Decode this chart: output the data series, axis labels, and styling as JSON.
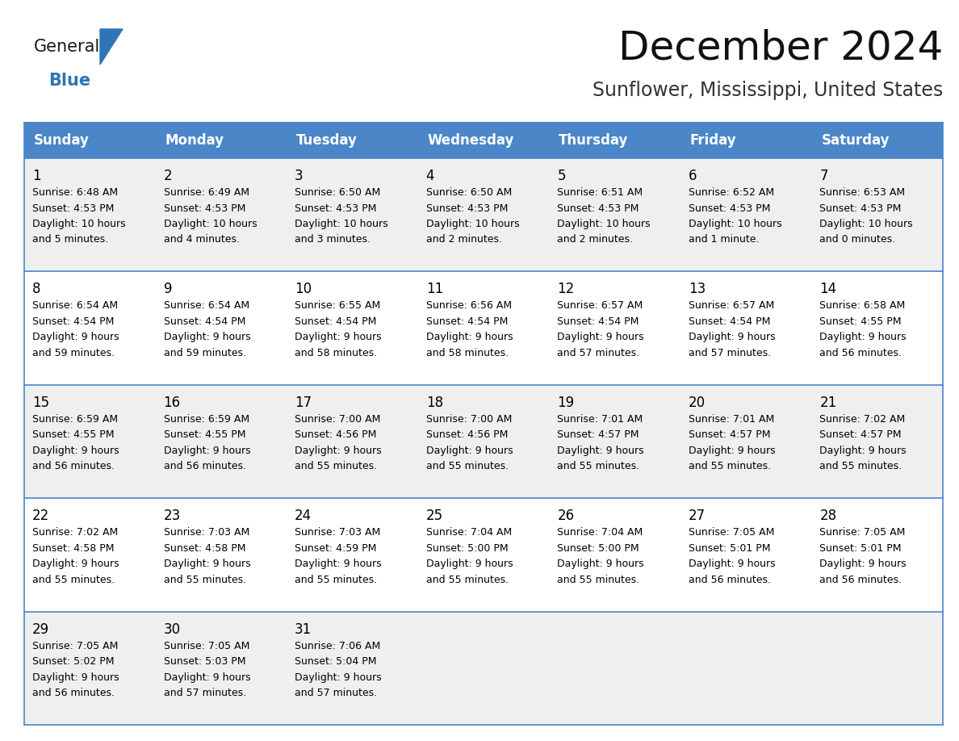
{
  "title": "December 2024",
  "subtitle": "Sunflower, Mississippi, United States",
  "header_color": "#4A86C8",
  "header_text_color": "#FFFFFF",
  "day_names": [
    "Sunday",
    "Monday",
    "Tuesday",
    "Wednesday",
    "Thursday",
    "Friday",
    "Saturday"
  ],
  "bg_color": "#FFFFFF",
  "cell_bg_row0": "#EFEFEF",
  "cell_bg_row1": "#FFFFFF",
  "cell_bg_row2": "#EFEFEF",
  "cell_bg_row3": "#FFFFFF",
  "cell_bg_row4": "#EFEFEF",
  "grid_color": "#4A86C8",
  "text_color": "#000000",
  "days": [
    {
      "date": 1,
      "row": 0,
      "col": 0,
      "sunrise": "6:48 AM",
      "sunset": "4:53 PM",
      "daylight": "10 hours and 5 minutes."
    },
    {
      "date": 2,
      "row": 0,
      "col": 1,
      "sunrise": "6:49 AM",
      "sunset": "4:53 PM",
      "daylight": "10 hours and 4 minutes."
    },
    {
      "date": 3,
      "row": 0,
      "col": 2,
      "sunrise": "6:50 AM",
      "sunset": "4:53 PM",
      "daylight": "10 hours and 3 minutes."
    },
    {
      "date": 4,
      "row": 0,
      "col": 3,
      "sunrise": "6:50 AM",
      "sunset": "4:53 PM",
      "daylight": "10 hours and 2 minutes."
    },
    {
      "date": 5,
      "row": 0,
      "col": 4,
      "sunrise": "6:51 AM",
      "sunset": "4:53 PM",
      "daylight": "10 hours and 2 minutes."
    },
    {
      "date": 6,
      "row": 0,
      "col": 5,
      "sunrise": "6:52 AM",
      "sunset": "4:53 PM",
      "daylight": "10 hours and 1 minute."
    },
    {
      "date": 7,
      "row": 0,
      "col": 6,
      "sunrise": "6:53 AM",
      "sunset": "4:53 PM",
      "daylight": "10 hours and 0 minutes."
    },
    {
      "date": 8,
      "row": 1,
      "col": 0,
      "sunrise": "6:54 AM",
      "sunset": "4:54 PM",
      "daylight": "9 hours and 59 minutes."
    },
    {
      "date": 9,
      "row": 1,
      "col": 1,
      "sunrise": "6:54 AM",
      "sunset": "4:54 PM",
      "daylight": "9 hours and 59 minutes."
    },
    {
      "date": 10,
      "row": 1,
      "col": 2,
      "sunrise": "6:55 AM",
      "sunset": "4:54 PM",
      "daylight": "9 hours and 58 minutes."
    },
    {
      "date": 11,
      "row": 1,
      "col": 3,
      "sunrise": "6:56 AM",
      "sunset": "4:54 PM",
      "daylight": "9 hours and 58 minutes."
    },
    {
      "date": 12,
      "row": 1,
      "col": 4,
      "sunrise": "6:57 AM",
      "sunset": "4:54 PM",
      "daylight": "9 hours and 57 minutes."
    },
    {
      "date": 13,
      "row": 1,
      "col": 5,
      "sunrise": "6:57 AM",
      "sunset": "4:54 PM",
      "daylight": "9 hours and 57 minutes."
    },
    {
      "date": 14,
      "row": 1,
      "col": 6,
      "sunrise": "6:58 AM",
      "sunset": "4:55 PM",
      "daylight": "9 hours and 56 minutes."
    },
    {
      "date": 15,
      "row": 2,
      "col": 0,
      "sunrise": "6:59 AM",
      "sunset": "4:55 PM",
      "daylight": "9 hours and 56 minutes."
    },
    {
      "date": 16,
      "row": 2,
      "col": 1,
      "sunrise": "6:59 AM",
      "sunset": "4:55 PM",
      "daylight": "9 hours and 56 minutes."
    },
    {
      "date": 17,
      "row": 2,
      "col": 2,
      "sunrise": "7:00 AM",
      "sunset": "4:56 PM",
      "daylight": "9 hours and 55 minutes."
    },
    {
      "date": 18,
      "row": 2,
      "col": 3,
      "sunrise": "7:00 AM",
      "sunset": "4:56 PM",
      "daylight": "9 hours and 55 minutes."
    },
    {
      "date": 19,
      "row": 2,
      "col": 4,
      "sunrise": "7:01 AM",
      "sunset": "4:57 PM",
      "daylight": "9 hours and 55 minutes."
    },
    {
      "date": 20,
      "row": 2,
      "col": 5,
      "sunrise": "7:01 AM",
      "sunset": "4:57 PM",
      "daylight": "9 hours and 55 minutes."
    },
    {
      "date": 21,
      "row": 2,
      "col": 6,
      "sunrise": "7:02 AM",
      "sunset": "4:57 PM",
      "daylight": "9 hours and 55 minutes."
    },
    {
      "date": 22,
      "row": 3,
      "col": 0,
      "sunrise": "7:02 AM",
      "sunset": "4:58 PM",
      "daylight": "9 hours and 55 minutes."
    },
    {
      "date": 23,
      "row": 3,
      "col": 1,
      "sunrise": "7:03 AM",
      "sunset": "4:58 PM",
      "daylight": "9 hours and 55 minutes."
    },
    {
      "date": 24,
      "row": 3,
      "col": 2,
      "sunrise": "7:03 AM",
      "sunset": "4:59 PM",
      "daylight": "9 hours and 55 minutes."
    },
    {
      "date": 25,
      "row": 3,
      "col": 3,
      "sunrise": "7:04 AM",
      "sunset": "5:00 PM",
      "daylight": "9 hours and 55 minutes."
    },
    {
      "date": 26,
      "row": 3,
      "col": 4,
      "sunrise": "7:04 AM",
      "sunset": "5:00 PM",
      "daylight": "9 hours and 55 minutes."
    },
    {
      "date": 27,
      "row": 3,
      "col": 5,
      "sunrise": "7:05 AM",
      "sunset": "5:01 PM",
      "daylight": "9 hours and 56 minutes."
    },
    {
      "date": 28,
      "row": 3,
      "col": 6,
      "sunrise": "7:05 AM",
      "sunset": "5:01 PM",
      "daylight": "9 hours and 56 minutes."
    },
    {
      "date": 29,
      "row": 4,
      "col": 0,
      "sunrise": "7:05 AM",
      "sunset": "5:02 PM",
      "daylight": "9 hours and 56 minutes."
    },
    {
      "date": 30,
      "row": 4,
      "col": 1,
      "sunrise": "7:05 AM",
      "sunset": "5:03 PM",
      "daylight": "9 hours and 57 minutes."
    },
    {
      "date": 31,
      "row": 4,
      "col": 2,
      "sunrise": "7:06 AM",
      "sunset": "5:04 PM",
      "daylight": "9 hours and 57 minutes."
    }
  ],
  "logo_text_general": "General",
  "logo_text_blue": "Blue",
  "logo_color_general": "#1a1a1a",
  "logo_color_blue": "#2E75B6",
  "logo_triangle_color": "#2E75B6",
  "title_fontsize": 36,
  "subtitle_fontsize": 17,
  "header_fontsize": 12,
  "date_fontsize": 12,
  "cell_fontsize": 9
}
